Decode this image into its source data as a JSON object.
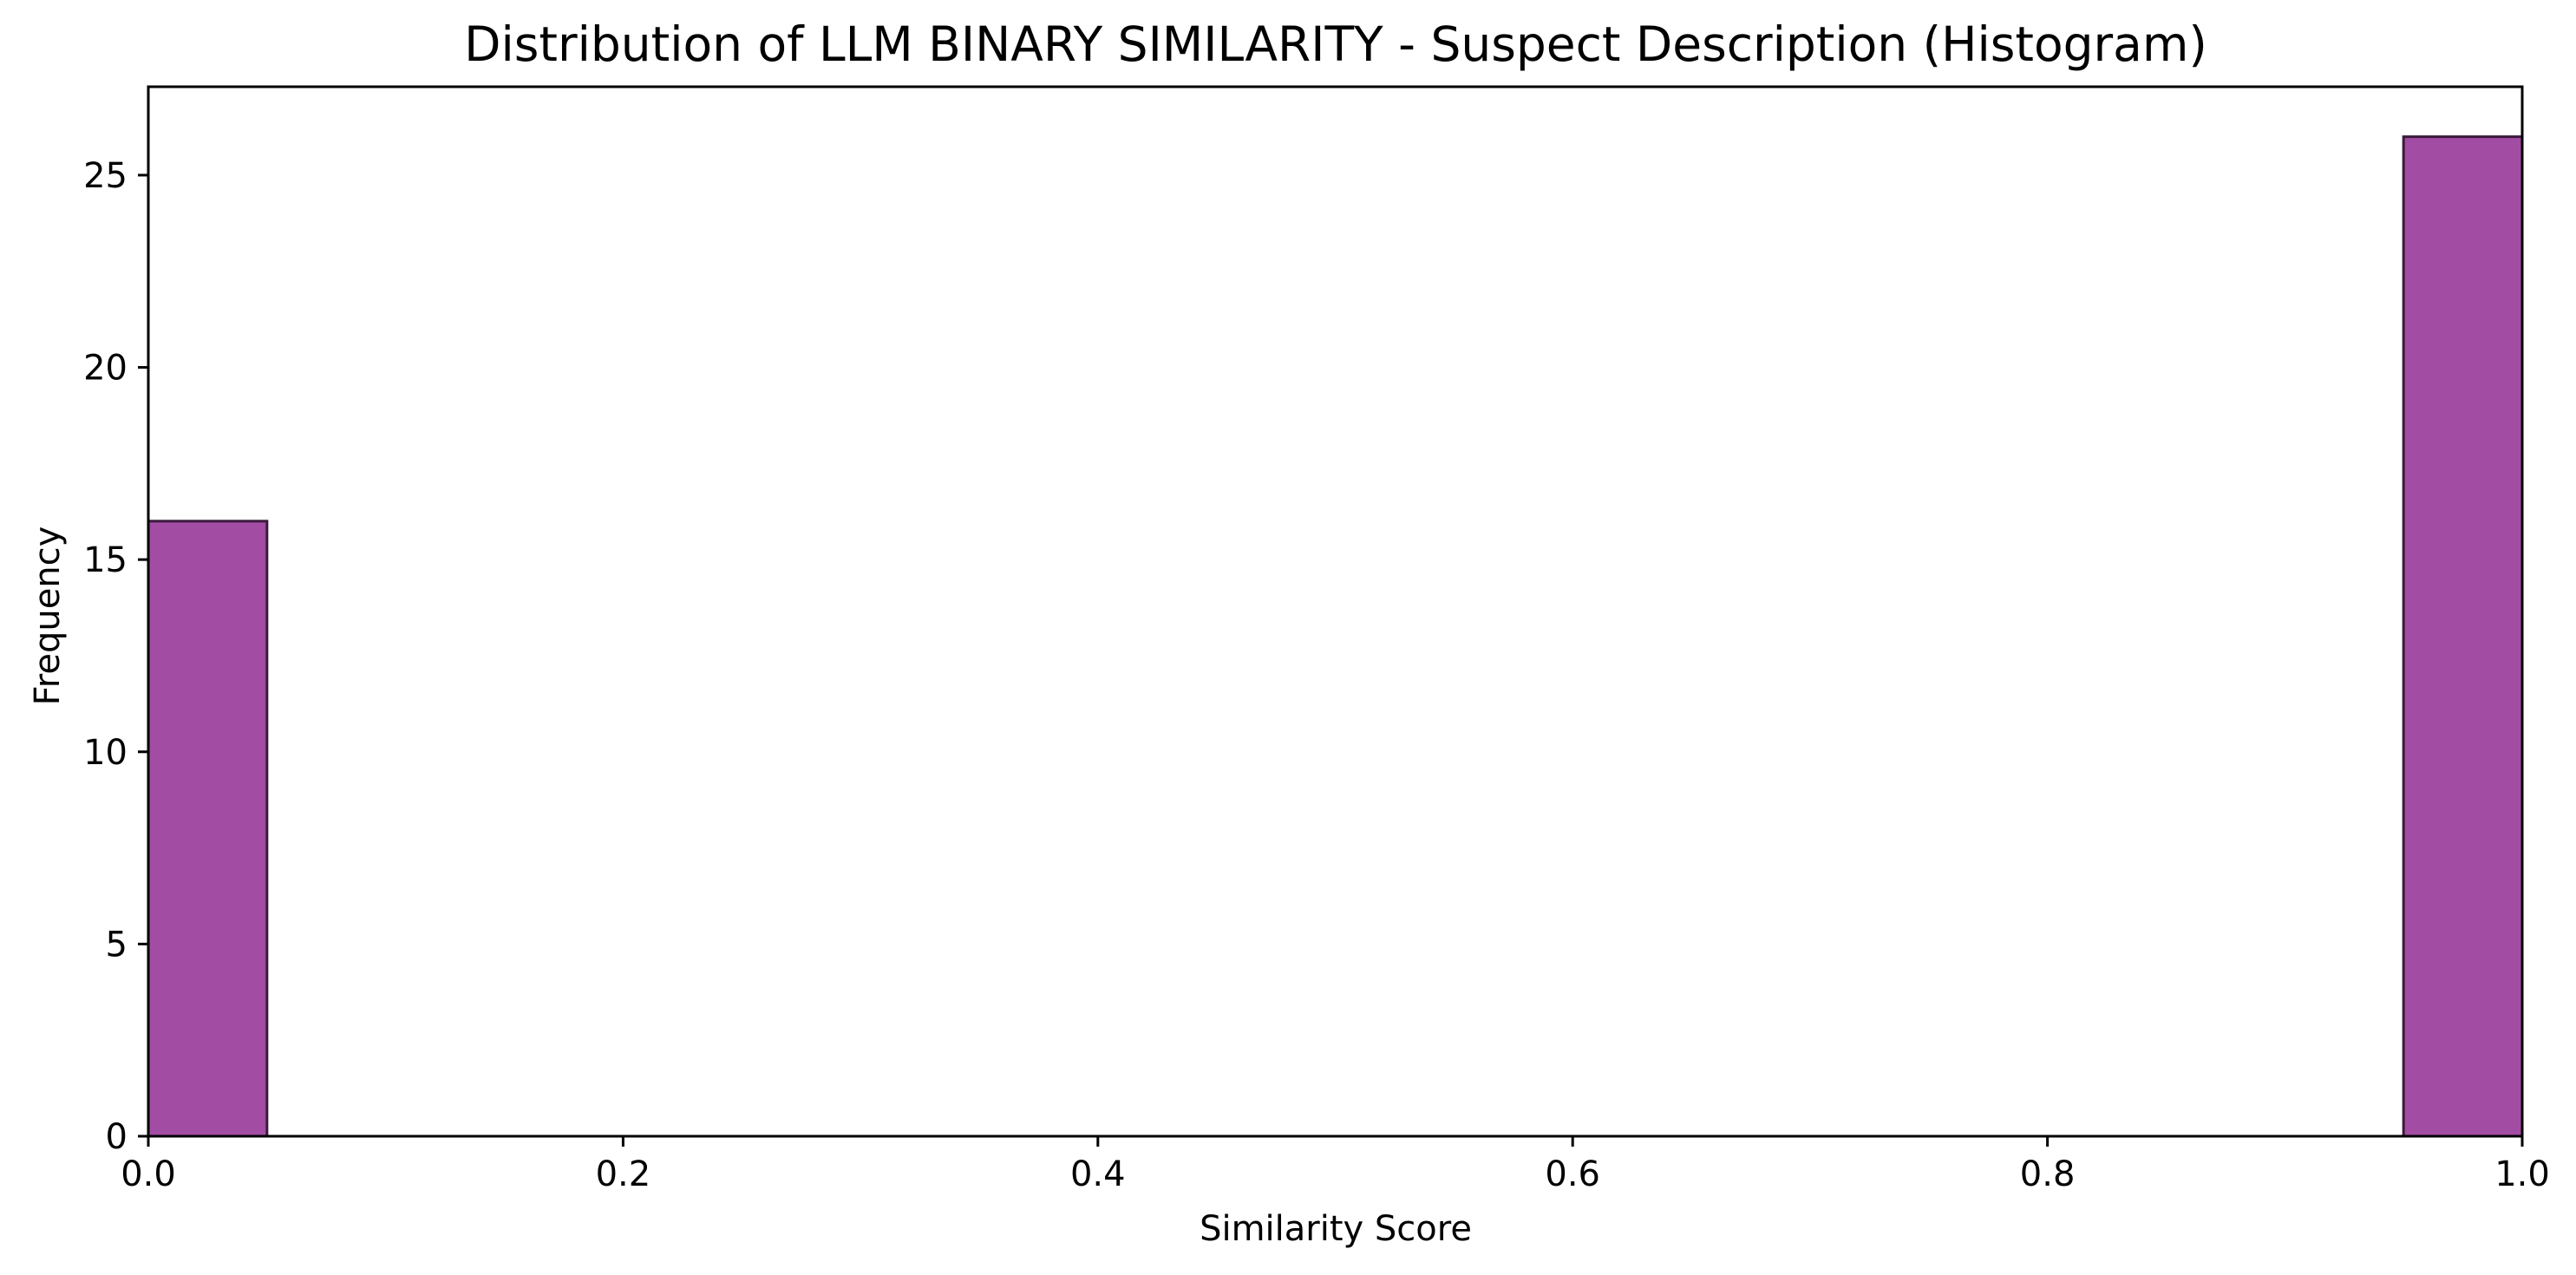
{
  "chart_data": {
    "type": "bar",
    "subtype": "histogram",
    "title": "Distribution of LLM BINARY SIMILARITY - Suspect Description (Histogram)",
    "xlabel": "Similarity Score",
    "ylabel": "Frequency",
    "xlim": [
      0.0,
      1.0
    ],
    "ylim": [
      0,
      27.3
    ],
    "x_ticks": [
      0.0,
      0.2,
      0.4,
      0.6,
      0.8,
      1.0
    ],
    "x_tick_labels": [
      "0.0",
      "0.2",
      "0.4",
      "0.6",
      "0.8",
      "1.0"
    ],
    "y_ticks": [
      0,
      5,
      10,
      15,
      20,
      25
    ],
    "y_tick_labels": [
      "0",
      "5",
      "10",
      "15",
      "20",
      "25"
    ],
    "grid": false,
    "legend": "none",
    "bins": [
      {
        "x_start": 0.0,
        "x_end": 0.05,
        "count": 16
      },
      {
        "x_start": 0.95,
        "x_end": 1.0,
        "count": 26
      }
    ],
    "colors": {
      "bar_fill": "#a24ca3",
      "bar_edge": "#3a1a3c",
      "axis": "#000000"
    }
  }
}
